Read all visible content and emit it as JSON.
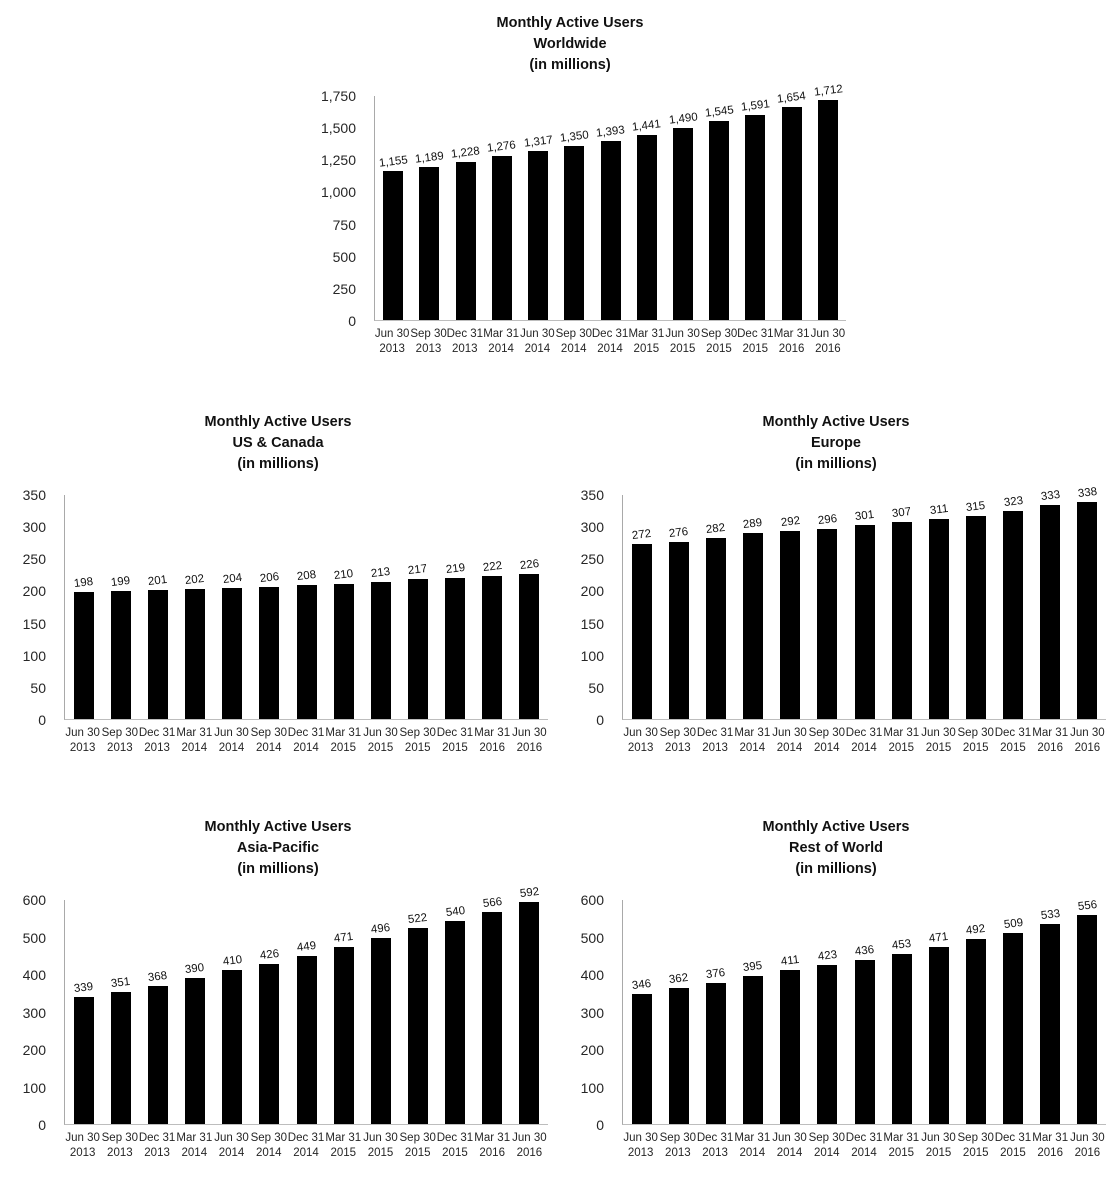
{
  "page": {
    "background_color": "#ffffff",
    "description": "Five black-and-white bar charts of Monthly Active Users by region"
  },
  "style": {
    "bar_color": "#000000",
    "axis_line_color": "#a9a9a9",
    "baseline_color": "#bdbdbd",
    "title_color": "#111111",
    "tick_label_color": "#262626"
  },
  "chart_data": [
    {
      "id": "worldwide",
      "type": "bar",
      "position": "top-center",
      "title": "Monthly Active Users Worldwide (in millions)",
      "title_lines": [
        "Monthly Active Users",
        "Worldwide",
        "(in millions)"
      ],
      "xlabel": "",
      "ylabel": "",
      "grid": false,
      "legend": false,
      "ylim": [
        0,
        1750
      ],
      "y_tick_values": [
        0,
        250,
        500,
        750,
        1000,
        1250,
        1500,
        1750
      ],
      "y_tick_labels": [
        "0",
        "250",
        "500",
        "750",
        "1,000",
        "1,250",
        "1,500",
        "1,750"
      ],
      "categories": [
        [
          "Jun 30",
          "2013"
        ],
        [
          "Sep 30",
          "2013"
        ],
        [
          "Dec 31",
          "2013"
        ],
        [
          "Mar 31",
          "2014"
        ],
        [
          "Jun 30",
          "2014"
        ],
        [
          "Sep 30",
          "2014"
        ],
        [
          "Dec 31",
          "2014"
        ],
        [
          "Mar 31",
          "2015"
        ],
        [
          "Jun 30",
          "2015"
        ],
        [
          "Sep 30",
          "2015"
        ],
        [
          "Dec 31",
          "2015"
        ],
        [
          "Mar 31",
          "2016"
        ],
        [
          "Jun 30",
          "2016"
        ]
      ],
      "values": [
        1155,
        1189,
        1228,
        1276,
        1317,
        1350,
        1393,
        1441,
        1490,
        1545,
        1591,
        1654,
        1712
      ],
      "value_labels": [
        "1,155",
        "1,189",
        "1,228",
        "1,276",
        "1,317",
        "1,350",
        "1,393",
        "1,441",
        "1,490",
        "1,545",
        "1,591",
        "1,654",
        "1,712"
      ]
    },
    {
      "id": "us-canada",
      "type": "bar",
      "position": "middle-left",
      "title": "Monthly Active Users US & Canada (in millions)",
      "title_lines": [
        "Monthly Active Users",
        "US & Canada",
        "(in millions)"
      ],
      "xlabel": "",
      "ylabel": "",
      "grid": false,
      "legend": false,
      "ylim": [
        0,
        350
      ],
      "y_tick_values": [
        0,
        50,
        100,
        150,
        200,
        250,
        300,
        350
      ],
      "y_tick_labels": [
        "0",
        "50",
        "100",
        "150",
        "200",
        "250",
        "300",
        "350"
      ],
      "categories": [
        [
          "Jun 30",
          "2013"
        ],
        [
          "Sep 30",
          "2013"
        ],
        [
          "Dec 31",
          "2013"
        ],
        [
          "Mar 31",
          "2014"
        ],
        [
          "Jun 30",
          "2014"
        ],
        [
          "Sep 30",
          "2014"
        ],
        [
          "Dec 31",
          "2014"
        ],
        [
          "Mar 31",
          "2015"
        ],
        [
          "Jun 30",
          "2015"
        ],
        [
          "Sep 30",
          "2015"
        ],
        [
          "Dec 31",
          "2015"
        ],
        [
          "Mar 31",
          "2016"
        ],
        [
          "Jun 30",
          "2016"
        ]
      ],
      "values": [
        198,
        199,
        201,
        202,
        204,
        206,
        208,
        210,
        213,
        217,
        219,
        222,
        226
      ],
      "value_labels": [
        "198",
        "199",
        "201",
        "202",
        "204",
        "206",
        "208",
        "210",
        "213",
        "217",
        "219",
        "222",
        "226"
      ]
    },
    {
      "id": "europe",
      "type": "bar",
      "position": "middle-right",
      "title": "Monthly Active Users Europe (in millions)",
      "title_lines": [
        "Monthly Active Users",
        "Europe",
        "(in millions)"
      ],
      "xlabel": "",
      "ylabel": "",
      "grid": false,
      "legend": false,
      "ylim": [
        0,
        350
      ],
      "y_tick_values": [
        0,
        50,
        100,
        150,
        200,
        250,
        300,
        350
      ],
      "y_tick_labels": [
        "0",
        "50",
        "100",
        "150",
        "200",
        "250",
        "300",
        "350"
      ],
      "categories": [
        [
          "Jun 30",
          "2013"
        ],
        [
          "Sep 30",
          "2013"
        ],
        [
          "Dec 31",
          "2013"
        ],
        [
          "Mar 31",
          "2014"
        ],
        [
          "Jun 30",
          "2014"
        ],
        [
          "Sep 30",
          "2014"
        ],
        [
          "Dec 31",
          "2014"
        ],
        [
          "Mar 31",
          "2015"
        ],
        [
          "Jun 30",
          "2015"
        ],
        [
          "Sep 30",
          "2015"
        ],
        [
          "Dec 31",
          "2015"
        ],
        [
          "Mar 31",
          "2016"
        ],
        [
          "Jun 30",
          "2016"
        ]
      ],
      "values": [
        272,
        276,
        282,
        289,
        292,
        296,
        301,
        307,
        311,
        315,
        323,
        333,
        338
      ],
      "value_labels": [
        "272",
        "276",
        "282",
        "289",
        "292",
        "296",
        "301",
        "307",
        "311",
        "315",
        "323",
        "333",
        "338"
      ]
    },
    {
      "id": "asia-pacific",
      "type": "bar",
      "position": "bottom-left",
      "title": "Monthly Active Users Asia-Pacific (in millions)",
      "title_lines": [
        "Monthly Active Users",
        "Asia-Pacific",
        "(in millions)"
      ],
      "xlabel": "",
      "ylabel": "",
      "grid": false,
      "legend": false,
      "ylim": [
        0,
        600
      ],
      "y_tick_values": [
        0,
        100,
        200,
        300,
        400,
        500,
        600
      ],
      "y_tick_labels": [
        "0",
        "100",
        "200",
        "300",
        "400",
        "500",
        "600"
      ],
      "categories": [
        [
          "Jun 30",
          "2013"
        ],
        [
          "Sep 30",
          "2013"
        ],
        [
          "Dec 31",
          "2013"
        ],
        [
          "Mar 31",
          "2014"
        ],
        [
          "Jun 30",
          "2014"
        ],
        [
          "Sep 30",
          "2014"
        ],
        [
          "Dec 31",
          "2014"
        ],
        [
          "Mar 31",
          "2015"
        ],
        [
          "Jun 30",
          "2015"
        ],
        [
          "Sep 30",
          "2015"
        ],
        [
          "Dec 31",
          "2015"
        ],
        [
          "Mar 31",
          "2016"
        ],
        [
          "Jun 30",
          "2016"
        ]
      ],
      "values": [
        339,
        351,
        368,
        390,
        410,
        426,
        449,
        471,
        496,
        522,
        540,
        566,
        592
      ],
      "value_labels": [
        "339",
        "351",
        "368",
        "390",
        "410",
        "426",
        "449",
        "471",
        "496",
        "522",
        "540",
        "566",
        "592"
      ]
    },
    {
      "id": "rest-of-world",
      "type": "bar",
      "position": "bottom-right",
      "title": "Monthly Active Users Rest of World (in millions)",
      "title_lines": [
        "Monthly Active Users",
        "Rest of World",
        "(in millions)"
      ],
      "xlabel": "",
      "ylabel": "",
      "grid": false,
      "legend": false,
      "ylim": [
        0,
        600
      ],
      "y_tick_values": [
        0,
        100,
        200,
        300,
        400,
        500,
        600
      ],
      "y_tick_labels": [
        "0",
        "100",
        "200",
        "300",
        "400",
        "500",
        "600"
      ],
      "categories": [
        [
          "Jun 30",
          "2013"
        ],
        [
          "Sep 30",
          "2013"
        ],
        [
          "Dec 31",
          "2013"
        ],
        [
          "Mar 31",
          "2014"
        ],
        [
          "Jun 30",
          "2014"
        ],
        [
          "Sep 30",
          "2014"
        ],
        [
          "Dec 31",
          "2014"
        ],
        [
          "Mar 31",
          "2015"
        ],
        [
          "Jun 30",
          "2015"
        ],
        [
          "Sep 30",
          "2015"
        ],
        [
          "Dec 31",
          "2015"
        ],
        [
          "Mar 31",
          "2016"
        ],
        [
          "Jun 30",
          "2016"
        ]
      ],
      "values": [
        346,
        362,
        376,
        395,
        411,
        423,
        436,
        453,
        471,
        492,
        509,
        533,
        556
      ],
      "value_labels": [
        "346",
        "362",
        "376",
        "395",
        "411",
        "423",
        "436",
        "453",
        "471",
        "492",
        "509",
        "533",
        "556"
      ]
    }
  ]
}
